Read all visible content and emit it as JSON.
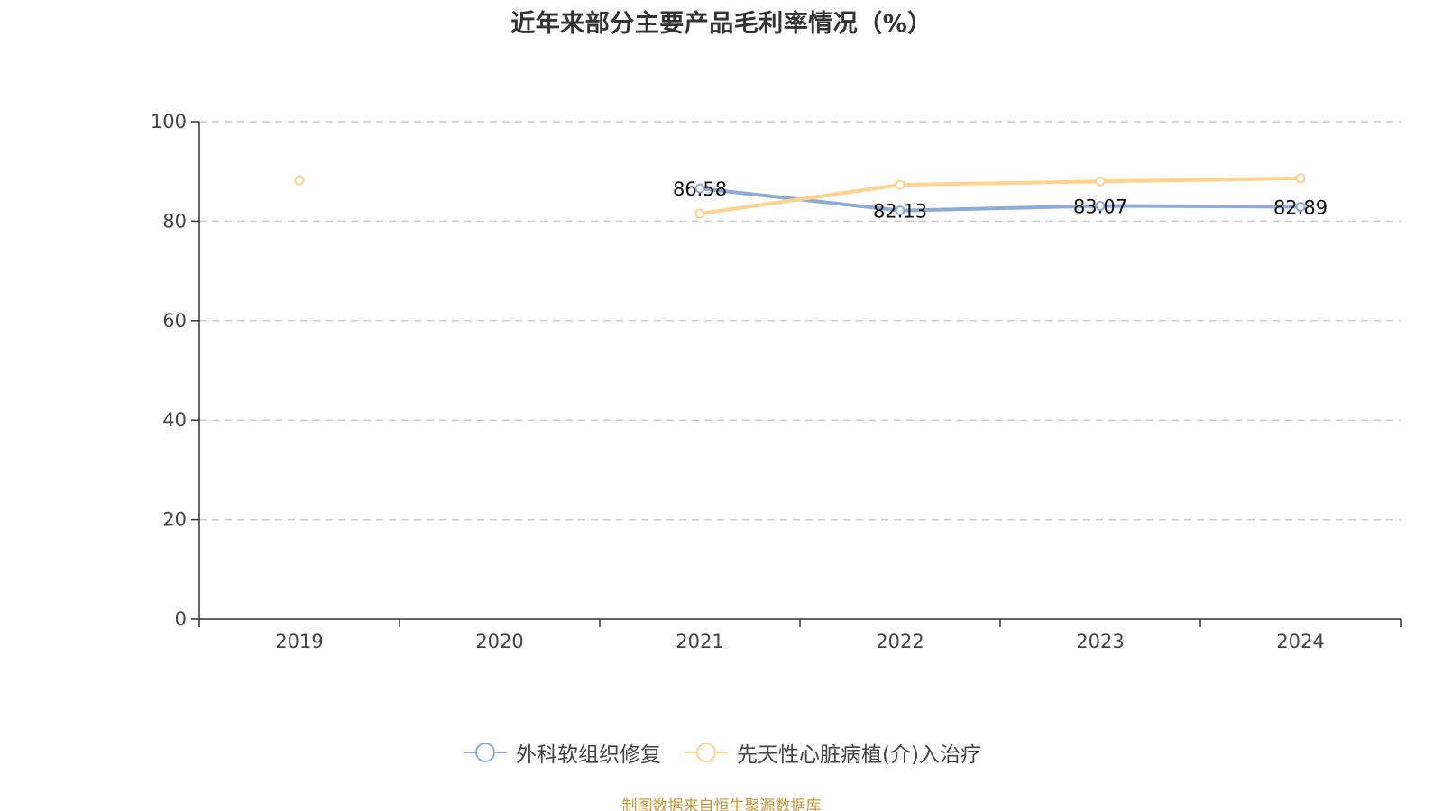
{
  "title": "近年来部分主要产品毛利率情况（%）",
  "source": "制图数据来自恒生聚源数据库",
  "chart_data": {
    "type": "line",
    "title": "近年来部分主要产品毛利率情况（%）",
    "categories": [
      "2019",
      "2020",
      "2021",
      "2022",
      "2023",
      "2024"
    ],
    "ylim": [
      0,
      100
    ],
    "yticks": [
      0,
      20,
      40,
      60,
      80,
      100
    ],
    "grid": true,
    "legend_position": "bottom",
    "series": [
      {
        "name": "外科软组织修复",
        "color": "#8eaad6",
        "values": [
          null,
          null,
          86.58,
          82.13,
          83.07,
          82.89
        ],
        "labels": [
          null,
          null,
          "86.58",
          "82.13",
          "83.07",
          "82.89"
        ]
      },
      {
        "name": "先天性心脏病植(介)入治疗",
        "color": "#fdd38f",
        "values": [
          88.2,
          null,
          81.5,
          87.3,
          88.0,
          88.6
        ],
        "labels": [
          null,
          null,
          null,
          null,
          null,
          null
        ]
      }
    ]
  }
}
